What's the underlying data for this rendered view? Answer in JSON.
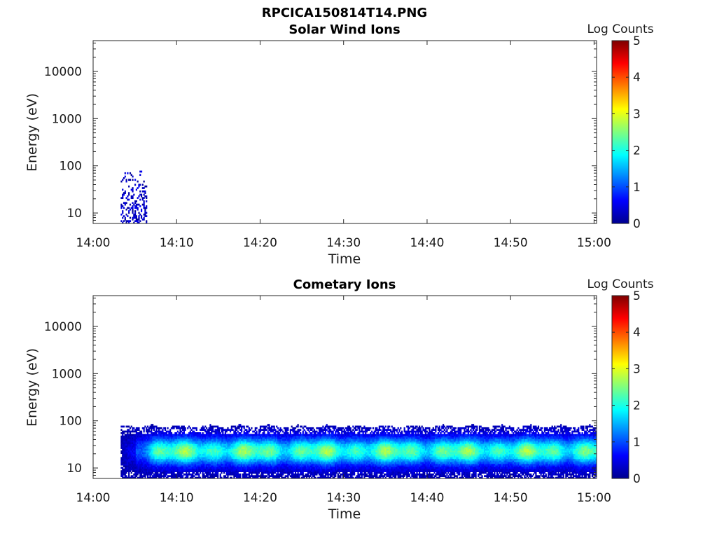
{
  "figure_title": "RPCICA150814T14.PNG",
  "colormap": [
    "#00008f",
    "#0000ff",
    "#007fff",
    "#00ffff",
    "#7fff7f",
    "#ffff00",
    "#ff7f00",
    "#ff0000",
    "#7f0000"
  ],
  "chart_data": [
    {
      "type": "heatmap",
      "title": "Solar Wind Ions",
      "xlabel": "Time",
      "ylabel": "Energy (eV)",
      "x_ticks": [
        "14:00",
        "14:10",
        "14:20",
        "14:30",
        "14:40",
        "14:50",
        "15:00"
      ],
      "x_tick_minutes": [
        0,
        10,
        20,
        30,
        40,
        50,
        60
      ],
      "xlim_minutes": [
        0,
        60.3
      ],
      "y_scale": "log",
      "y_ticks": [
        "10",
        "100",
        "1000",
        "10000"
      ],
      "y_tick_values": [
        10,
        100,
        1000,
        10000
      ],
      "ylim": [
        6,
        45000
      ],
      "colorbar": {
        "label": "Log Counts",
        "range": [
          0,
          5
        ],
        "ticks": [
          "0",
          "1",
          "2",
          "3",
          "4",
          "5"
        ]
      },
      "description_of_data": "sparse low counts only",
      "regions": [
        {
          "t_start": 3.3,
          "t_end": 6.4,
          "e_low": 6,
          "e_high": 78,
          "log_counts_max": 0.6,
          "density": 0.35
        }
      ]
    },
    {
      "type": "heatmap",
      "title": "Cometary Ions",
      "xlabel": "Time",
      "ylabel": "Energy (eV)",
      "x_ticks": [
        "14:00",
        "14:10",
        "14:20",
        "14:30",
        "14:40",
        "14:50",
        "15:00"
      ],
      "x_tick_minutes": [
        0,
        10,
        20,
        30,
        40,
        50,
        60
      ],
      "xlim_minutes": [
        0,
        60.3
      ],
      "y_scale": "log",
      "y_ticks": [
        "10",
        "100",
        "1000",
        "10000"
      ],
      "y_tick_values": [
        10,
        100,
        1000,
        10000
      ],
      "ylim": [
        6,
        45000
      ],
      "colorbar": {
        "label": "Log Counts",
        "range": [
          0,
          5
        ],
        "ticks": [
          "0",
          "1",
          "2",
          "3",
          "4",
          "5"
        ]
      },
      "band": {
        "t_start": 3.3,
        "t_end": 60.3,
        "e_low": 6,
        "e_high": 80,
        "peak_energy_eV": 22,
        "peak_log_counts": 2.6
      }
    }
  ]
}
